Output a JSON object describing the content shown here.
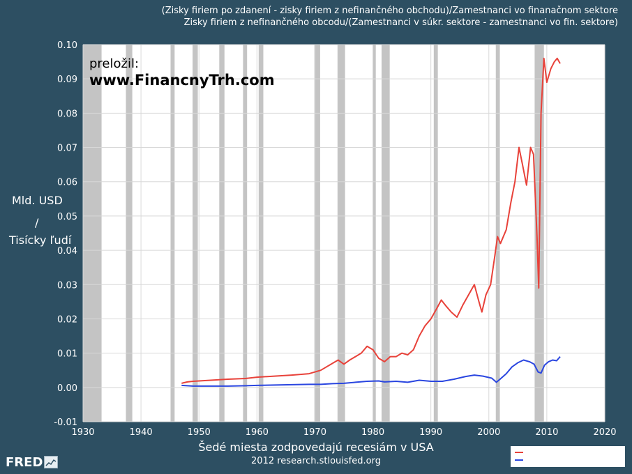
{
  "chart_data": {
    "type": "line",
    "title_lines": [
      "(Zisky firiem po zdanení - zisky firiem z nefinančného obchodu)/Zamestnanci vo finanačnom sektore",
      "Zisky firiem z nefinančného obcodu/(Zamestnanci v súkr. sektore - zamestnanci vo fin. sektore)"
    ],
    "ylabel_lines": [
      "Mld. USD",
      "/",
      "Tisícky ľudí"
    ],
    "xlabel": "Šedé miesta zodpovedajú recesiám v USA",
    "xlim": [
      1930,
      2020
    ],
    "ylim": [
      -0.01,
      0.1
    ],
    "x_ticks": [
      "1930",
      "1940",
      "1950",
      "1960",
      "1970",
      "1980",
      "1990",
      "2000",
      "2010",
      "2020"
    ],
    "y_ticks": [
      "-0.01",
      "0.00",
      "0.01",
      "0.02",
      "0.03",
      "0.04",
      "0.05",
      "0.06",
      "0.07",
      "0.08",
      "0.09",
      "0.10"
    ],
    "grid": true,
    "recessions": [
      [
        1929.6,
        1933.2
      ],
      [
        1937.4,
        1938.5
      ],
      [
        1945.1,
        1945.8
      ],
      [
        1948.9,
        1949.8
      ],
      [
        1953.5,
        1954.4
      ],
      [
        1957.6,
        1958.3
      ],
      [
        1960.3,
        1961.1
      ],
      [
        1969.9,
        1970.9
      ],
      [
        1973.9,
        1975.2
      ],
      [
        1980.0,
        1980.5
      ],
      [
        1981.5,
        1982.9
      ],
      [
        1990.5,
        1991.2
      ],
      [
        2001.2,
        2001.9
      ],
      [
        2007.9,
        2009.5
      ]
    ],
    "series": [
      {
        "color": "#e8423a",
        "points": [
          [
            1947,
            0.0012
          ],
          [
            1948,
            0.0016
          ],
          [
            1949,
            0.0018
          ],
          [
            1950,
            0.0019
          ],
          [
            1952,
            0.0021
          ],
          [
            1955,
            0.0024
          ],
          [
            1958,
            0.0026
          ],
          [
            1960,
            0.003
          ],
          [
            1963,
            0.0033
          ],
          [
            1966,
            0.0036
          ],
          [
            1969,
            0.004
          ],
          [
            1971,
            0.005
          ],
          [
            1973,
            0.007
          ],
          [
            1974,
            0.008
          ],
          [
            1975,
            0.0068
          ],
          [
            1976,
            0.008
          ],
          [
            1977,
            0.009
          ],
          [
            1978,
            0.01
          ],
          [
            1979,
            0.012
          ],
          [
            1980,
            0.011
          ],
          [
            1981,
            0.0085
          ],
          [
            1982,
            0.0075
          ],
          [
            1983,
            0.009
          ],
          [
            1984,
            0.009
          ],
          [
            1985,
            0.01
          ],
          [
            1986,
            0.0095
          ],
          [
            1987,
            0.011
          ],
          [
            1988,
            0.015
          ],
          [
            1989,
            0.018
          ],
          [
            1990,
            0.02
          ],
          [
            1991,
            0.023
          ],
          [
            1991.8,
            0.0255
          ],
          [
            1992.5,
            0.024
          ],
          [
            1993.5,
            0.022
          ],
          [
            1994.5,
            0.0205
          ],
          [
            1995.5,
            0.024
          ],
          [
            1996.5,
            0.027
          ],
          [
            1997.5,
            0.03
          ],
          [
            1998.3,
            0.025
          ],
          [
            1998.8,
            0.022
          ],
          [
            1999.5,
            0.027
          ],
          [
            2000.3,
            0.03
          ],
          [
            2001,
            0.038
          ],
          [
            2001.5,
            0.044
          ],
          [
            2002,
            0.042
          ],
          [
            2003,
            0.046
          ],
          [
            2003.8,
            0.054
          ],
          [
            2004.5,
            0.06
          ],
          [
            2005.2,
            0.07
          ],
          [
            2005.8,
            0.065
          ],
          [
            2006.5,
            0.059
          ],
          [
            2007.2,
            0.07
          ],
          [
            2007.7,
            0.068
          ],
          [
            2008.3,
            0.044
          ],
          [
            2008.6,
            0.029
          ],
          [
            2009,
            0.08
          ],
          [
            2009.5,
            0.096
          ],
          [
            2010,
            0.089
          ],
          [
            2010.7,
            0.093
          ],
          [
            2011.3,
            0.095
          ],
          [
            2011.8,
            0.096
          ],
          [
            2012.3,
            0.0945
          ]
        ]
      },
      {
        "color": "#2a46e0",
        "points": [
          [
            1947,
            0.0006
          ],
          [
            1948,
            0.0005
          ],
          [
            1949,
            0.0004
          ],
          [
            1950,
            0.0004
          ],
          [
            1952,
            0.0004
          ],
          [
            1955,
            0.0004
          ],
          [
            1958,
            0.0005
          ],
          [
            1960,
            0.0006
          ],
          [
            1963,
            0.0007
          ],
          [
            1966,
            0.0008
          ],
          [
            1969,
            0.0009
          ],
          [
            1971,
            0.0009
          ],
          [
            1973,
            0.0011
          ],
          [
            1975,
            0.0012
          ],
          [
            1977,
            0.0015
          ],
          [
            1979,
            0.0018
          ],
          [
            1981,
            0.0019
          ],
          [
            1982,
            0.0016
          ],
          [
            1984,
            0.0018
          ],
          [
            1986,
            0.0015
          ],
          [
            1988,
            0.0021
          ],
          [
            1990,
            0.0018
          ],
          [
            1992,
            0.0018
          ],
          [
            1994,
            0.0024
          ],
          [
            1996,
            0.0032
          ],
          [
            1997.5,
            0.0036
          ],
          [
            1999,
            0.0033
          ],
          [
            2000.5,
            0.0027
          ],
          [
            2001.3,
            0.0015
          ],
          [
            2002,
            0.0025
          ],
          [
            2003,
            0.004
          ],
          [
            2004,
            0.006
          ],
          [
            2005,
            0.0072
          ],
          [
            2006,
            0.008
          ],
          [
            2007,
            0.0075
          ],
          [
            2007.8,
            0.0068
          ],
          [
            2008.5,
            0.0045
          ],
          [
            2009,
            0.0042
          ],
          [
            2009.6,
            0.0065
          ],
          [
            2010.3,
            0.0075
          ],
          [
            2011,
            0.008
          ],
          [
            2011.7,
            0.0078
          ],
          [
            2012.3,
            0.009
          ]
        ]
      }
    ]
  },
  "overlay": {
    "translated_by": "preložil:",
    "website": "www.FinancnyTrh.com"
  },
  "footer": {
    "source": "2012 research.stlouisfed.org",
    "logo_text": "FRED"
  }
}
